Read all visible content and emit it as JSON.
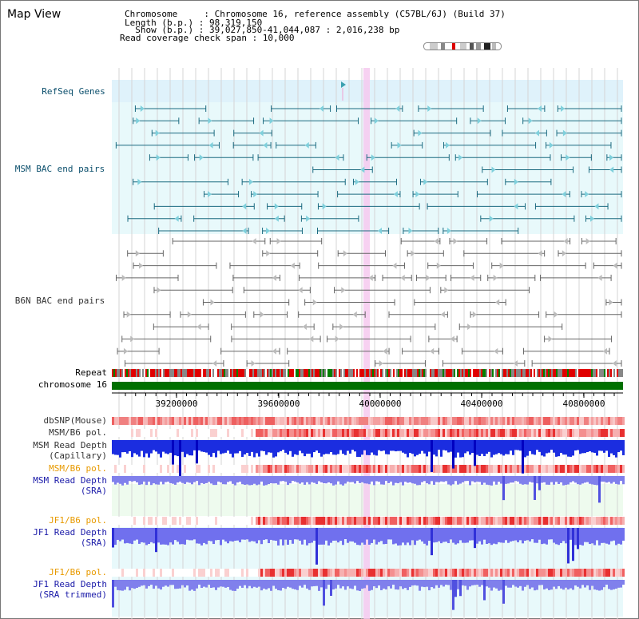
{
  "page_title": "Map View",
  "info": {
    "chromosome": "Chromosome     : Chromosome 16, reference assembly (C57BL/6J) (Build 37)",
    "length": "Length (b.p.) : 98,319,150",
    "show": "  Show (b.p.) : 39,027,850-41,044,087 : 2,016,238 bp",
    "coverage": "Read coverage check span : 10,000"
  },
  "tracks": {
    "refseq": "RefSeq Genes",
    "msm_bac": "MSM BAC end pairs",
    "b6n_bac": "B6N BAC end pairs",
    "repeat": "Repeat",
    "chromosome": "chromosome 16",
    "dbsnp": "dbSNP(Mouse)",
    "msm_b6_pol_1": "MSM/B6 pol.",
    "msm_depth_cap_1": "MSM Read Depth",
    "msm_depth_cap_2": "(Capillary)",
    "msm_b6_pol_2": "MSM/B6 pol.",
    "msm_depth_sra_1": "MSM Read Depth",
    "msm_depth_sra_2": "(SRA)",
    "jf1_b6_pol_1": "JF1/B6 pol.",
    "jf1_depth_sra_1": "JF1 Read Depth",
    "jf1_depth_sra_2": "(SRA)",
    "jf1_b6_pol_2": "JF1/B6 pol.",
    "jf1_depth_trim_1": "JF1 Read Depth",
    "jf1_depth_trim_2": "(SRA trimmed)"
  },
  "axis_ticks": [
    "39200000",
    "39600000",
    "40000000",
    "40400000",
    "40800000"
  ],
  "colors": {
    "msm_label": "#0b4f6c",
    "sra_label": "#1a1aa8",
    "pol_label": "#e89a00",
    "refseq_bg": "#dff2fb",
    "bac_bg": "#e8f9fb",
    "chromosome_bar": "#007000",
    "highlight": "#f6c9ef"
  }
}
